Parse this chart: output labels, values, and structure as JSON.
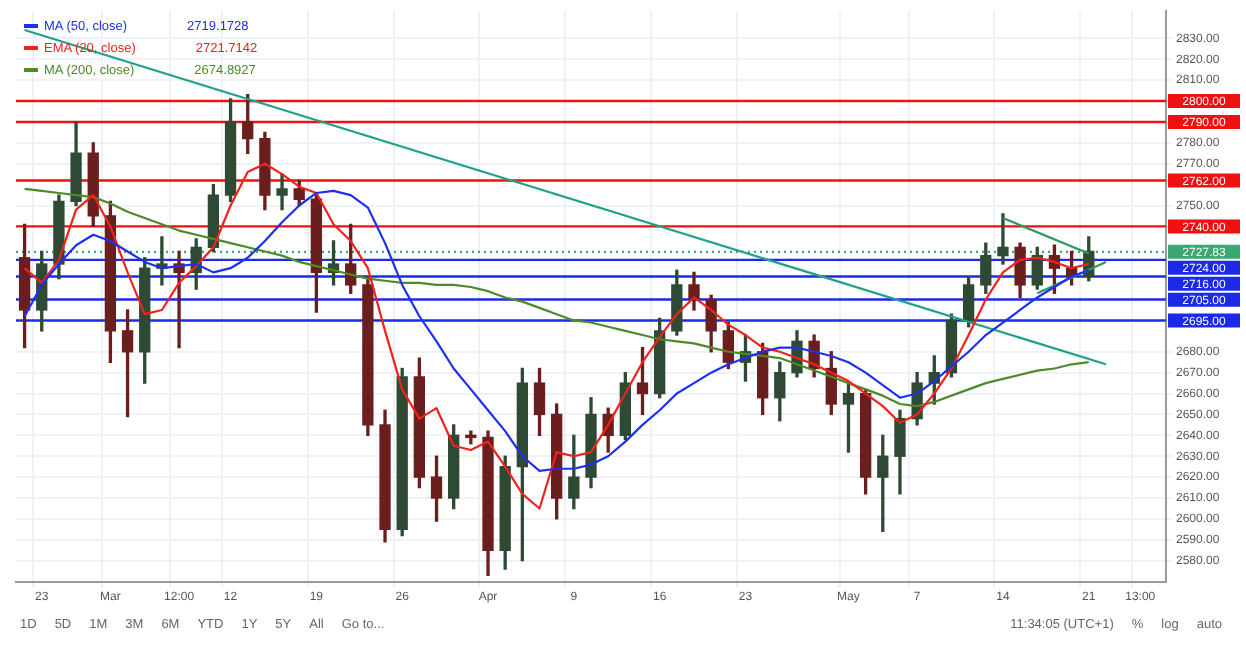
{
  "chart_data": {
    "type": "candlestick",
    "categories": [
      null,
      "23",
      null,
      null,
      null,
      "Mar",
      null,
      null,
      null,
      "12:00",
      null,
      null,
      "12",
      null,
      null,
      null,
      null,
      "19",
      null,
      null,
      null,
      null,
      "26",
      null,
      null,
      null,
      null,
      "Apr",
      null,
      null,
      null,
      null,
      "9",
      null,
      null,
      null,
      null,
      "16",
      null,
      null,
      null,
      null,
      "23",
      null,
      null,
      null,
      null,
      null,
      "May",
      null,
      null,
      null,
      "7",
      null,
      null,
      null,
      null,
      "14",
      null,
      null,
      null,
      null,
      "21",
      null,
      null,
      "13:00",
      null
    ],
    "ohlc": [
      [
        2725,
        2741,
        2682,
        2700
      ],
      [
        2700,
        2728,
        2690,
        2722
      ],
      [
        2722,
        2755,
        2715,
        2752
      ],
      [
        2752,
        2790,
        2750,
        2775
      ],
      [
        2775,
        2780,
        2740,
        2745
      ],
      [
        2745,
        2752,
        2675,
        2690
      ],
      [
        2690,
        2700,
        2649,
        2680
      ],
      [
        2680,
        2725,
        2665,
        2720
      ],
      [
        2720,
        2735,
        2712,
        2722
      ],
      [
        2722,
        2728,
        2682,
        2718
      ],
      [
        2718,
        2734,
        2710,
        2730
      ],
      [
        2730,
        2760,
        2728,
        2755
      ],
      [
        2755,
        2801,
        2752,
        2790
      ],
      [
        2790,
        2803,
        2775,
        2782
      ],
      [
        2782,
        2785,
        2748,
        2755
      ],
      [
        2755,
        2765,
        2748,
        2758
      ],
      [
        2758,
        2762,
        2750,
        2753
      ],
      [
        2753,
        2756,
        2699,
        2718
      ],
      [
        2718,
        2733,
        2712,
        2722
      ],
      [
        2722,
        2741,
        2708,
        2712
      ],
      [
        2712,
        2716,
        2640,
        2645
      ],
      [
        2645,
        2652,
        2589,
        2595
      ],
      [
        2595,
        2672,
        2592,
        2668
      ],
      [
        2668,
        2677,
        2615,
        2620
      ],
      [
        2620,
        2630,
        2599,
        2610
      ],
      [
        2610,
        2645,
        2605,
        2640
      ],
      [
        2640,
        2642,
        2636,
        2639
      ],
      [
        2639,
        2642,
        2573,
        2585
      ],
      [
        2585,
        2630,
        2576,
        2625
      ],
      [
        2625,
        2672,
        2580,
        2665
      ],
      [
        2665,
        2672,
        2640,
        2650
      ],
      [
        2650,
        2655,
        2600,
        2610
      ],
      [
        2610,
        2640,
        2605,
        2620
      ],
      [
        2620,
        2658,
        2615,
        2650
      ],
      [
        2650,
        2653,
        2632,
        2640
      ],
      [
        2640,
        2670,
        2638,
        2665
      ],
      [
        2665,
        2682,
        2650,
        2660
      ],
      [
        2660,
        2696,
        2658,
        2690
      ],
      [
        2690,
        2719,
        2688,
        2712
      ],
      [
        2712,
        2718,
        2700,
        2705
      ],
      [
        2705,
        2707,
        2680,
        2690
      ],
      [
        2690,
        2694,
        2672,
        2675
      ],
      [
        2675,
        2688,
        2666,
        2680
      ],
      [
        2680,
        2684,
        2650,
        2658
      ],
      [
        2658,
        2675,
        2647,
        2670
      ],
      [
        2670,
        2690,
        2668,
        2685
      ],
      [
        2685,
        2688,
        2668,
        2672
      ],
      [
        2672,
        2680,
        2650,
        2655
      ],
      [
        2655,
        2665,
        2632,
        2660
      ],
      [
        2660,
        2662,
        2612,
        2620
      ],
      [
        2620,
        2640,
        2594,
        2630
      ],
      [
        2630,
        2652,
        2612,
        2648
      ],
      [
        2648,
        2670,
        2645,
        2665
      ],
      [
        2665,
        2678,
        2655,
        2670
      ],
      [
        2670,
        2698,
        2668,
        2695
      ],
      [
        2695,
        2716,
        2692,
        2712
      ],
      [
        2712,
        2732,
        2708,
        2726
      ],
      [
        2726,
        2746,
        2722,
        2730
      ],
      [
        2730,
        2732,
        2706,
        2712
      ],
      [
        2712,
        2730,
        2710,
        2726
      ],
      [
        2726,
        2731,
        2708,
        2720
      ],
      [
        2720,
        2728,
        2712,
        2716
      ],
      [
        2716,
        2735,
        2714,
        2728
      ],
      null,
      null,
      null,
      null
    ],
    "series": [
      {
        "name": "MA (50, close)",
        "type": "line",
        "color": "#1f2ff0",
        "values": [
          2697,
          2712,
          2722,
          2731,
          2736,
          2733,
          2728,
          2723,
          2720,
          2721,
          2722,
          2718,
          2720,
          2725,
          2733,
          2742,
          2750,
          2756,
          2757,
          2755,
          2749,
          2732,
          2712,
          2697,
          2685,
          2672,
          2662,
          2652,
          2642,
          2630,
          2623,
          2624,
          2624,
          2626,
          2630,
          2637,
          2645,
          2652,
          2660,
          2665,
          2670,
          2674,
          2677,
          2680,
          2682,
          2682,
          2680,
          2678,
          2675,
          2670,
          2664,
          2658,
          2660,
          2666,
          2673,
          2680,
          2688,
          2694,
          2700,
          2706,
          2711,
          2716,
          2719,
          null,
          null,
          null,
          null
        ]
      },
      {
        "name": "EMA (20, close)",
        "type": "line",
        "color": "#f0221c",
        "values": [
          2720,
          2713,
          2724,
          2748,
          2755,
          2740,
          2718,
          2698,
          2700,
          2713,
          2721,
          2730,
          2750,
          2766,
          2770,
          2765,
          2759,
          2756,
          2741,
          2733,
          2720,
          2690,
          2662,
          2648,
          2653,
          2635,
          2633,
          2637,
          2625,
          2612,
          2605,
          2632,
          2630,
          2632,
          2645,
          2660,
          2675,
          2687,
          2698,
          2706,
          2700,
          2693,
          2688,
          2682,
          2680,
          2677,
          2674,
          2670,
          2666,
          2660,
          2654,
          2646,
          2650,
          2660,
          2672,
          2688,
          2705,
          2718,
          2724,
          2725,
          2723,
          2720,
          2722,
          null,
          null,
          null,
          null
        ]
      },
      {
        "name": "MA (200, close)",
        "type": "line",
        "color": "#4e8a2a",
        "values": [
          2758,
          2757,
          2756,
          2755,
          2754,
          2751,
          2747,
          2744,
          2741,
          2738,
          2736,
          2734,
          2732,
          2730,
          2728,
          2726,
          2723,
          2721,
          2719,
          2717,
          2715,
          2714,
          2713,
          2713,
          2712,
          2712,
          2711,
          2709,
          2706,
          2704,
          2701,
          2698,
          2695,
          2694,
          2692,
          2690,
          2688,
          2686,
          2685,
          2684,
          2682,
          2680,
          2679,
          2678,
          2677,
          2674,
          2671,
          2668,
          2665,
          2662,
          2659,
          2655,
          2654,
          2656,
          2659,
          2662,
          2665,
          2667,
          2669,
          2671,
          2672,
          2674,
          2675,
          null,
          null,
          null,
          null
        ]
      },
      {
        "type": "line",
        "color": "#21a08a",
        "values": [
          2834,
          null,
          null,
          null,
          null,
          null,
          null,
          null,
          null,
          null,
          null,
          null,
          null,
          null,
          null,
          null,
          null,
          null,
          null,
          null,
          null,
          null,
          null,
          null,
          null,
          null,
          null,
          null,
          null,
          null,
          null,
          null,
          null,
          null,
          null,
          null,
          null,
          null,
          null,
          null,
          null,
          null,
          null,
          null,
          null,
          null,
          null,
          null,
          null,
          null,
          null,
          null,
          null,
          null,
          null,
          null,
          null,
          null,
          null,
          null,
          null,
          null,
          null,
          2674,
          null,
          null,
          null
        ]
      },
      {
        "type": "line",
        "color": "#2e9a60",
        "values": [
          null,
          null,
          null,
          null,
          null,
          null,
          null,
          null,
          null,
          null,
          null,
          null,
          null,
          null,
          null,
          null,
          null,
          null,
          null,
          null,
          null,
          null,
          null,
          null,
          null,
          null,
          null,
          null,
          null,
          null,
          null,
          null,
          null,
          null,
          null,
          null,
          null,
          null,
          null,
          null,
          null,
          null,
          null,
          null,
          null,
          null,
          null,
          null,
          null,
          null,
          null,
          null,
          null,
          null,
          null,
          null,
          null,
          2744,
          null,
          null,
          null,
          null,
          2727,
          null,
          null,
          null,
          null
        ]
      },
      {
        "type": "line",
        "color": "#2e9a60",
        "values": [
          null,
          null,
          null,
          null,
          null,
          null,
          null,
          null,
          null,
          null,
          null,
          null,
          null,
          null,
          null,
          null,
          null,
          null,
          null,
          null,
          null,
          null,
          null,
          null,
          null,
          null,
          null,
          null,
          null,
          null,
          null,
          null,
          null,
          null,
          null,
          null,
          null,
          null,
          null,
          null,
          null,
          null,
          null,
          null,
          null,
          null,
          null,
          null,
          null,
          null,
          null,
          null,
          null,
          null,
          null,
          null,
          null,
          null,
          null,
          2708,
          null,
          null,
          null,
          2723,
          null,
          null,
          null
        ]
      }
    ],
    "ylim": [
      2570,
      2843
    ],
    "yticks": [
      {
        "value": 2830,
        "label": "2830.00"
      },
      {
        "value": 2820,
        "label": "2820.00"
      },
      {
        "value": 2810,
        "label": "2810.00"
      },
      {
        "value": 2780,
        "label": "2780.00"
      },
      {
        "value": 2770,
        "label": "2770.00"
      },
      {
        "value": 2750,
        "label": "2750.00"
      },
      {
        "value": 2680,
        "label": "2680.00"
      },
      {
        "value": 2670,
        "label": "2670.00"
      },
      {
        "value": 2660,
        "label": "2660.00"
      },
      {
        "value": 2650,
        "label": "2650.00"
      },
      {
        "value": 2640,
        "label": "2640.00"
      },
      {
        "value": 2630,
        "label": "2630.00"
      },
      {
        "value": 2620,
        "label": "2620.00"
      },
      {
        "value": 2610,
        "label": "2610.00"
      },
      {
        "value": 2600,
        "label": "2600.00"
      },
      {
        "value": 2590,
        "label": "2590.00"
      },
      {
        "value": 2580,
        "label": "2580.00"
      }
    ],
    "ref_lines": [
      {
        "axis": "y",
        "value": 2800,
        "label": "2800.00",
        "color": "#f01010"
      },
      {
        "axis": "y",
        "value": 2790,
        "label": "2790.00",
        "color": "#f01010"
      },
      {
        "axis": "y",
        "value": 2762,
        "label": "2762.00",
        "color": "#f01010"
      },
      {
        "axis": "y",
        "value": 2740,
        "label": "2740.00",
        "color": "#f01010"
      },
      {
        "axis": "y",
        "value": 2727.83,
        "label": "2727.83",
        "color": "#3aa870",
        "line_style": "dotted"
      },
      {
        "axis": "y",
        "value": 2724,
        "label": "2724.00",
        "color": "#1a2ae8"
      },
      {
        "axis": "y",
        "value": 2716,
        "label": "2716.00",
        "color": "#1a2ae8"
      },
      {
        "axis": "y",
        "value": 2705,
        "label": "2705.00",
        "color": "#1a2ae8"
      },
      {
        "axis": "y",
        "value": 2695,
        "label": "2695.00",
        "color": "#1a2ae8"
      }
    ],
    "annotations": [
      "2719.1728",
      "2721.7142",
      "2674.8927",
      "1D",
      "5D",
      "1M",
      "3M",
      "6M",
      "YTD",
      "1Y",
      "5Y",
      "All",
      "Go to...",
      "11:34:05 (UTC+1)",
      "%",
      "log",
      "auto"
    ],
    "grid": true,
    "legend": "top left"
  }
}
